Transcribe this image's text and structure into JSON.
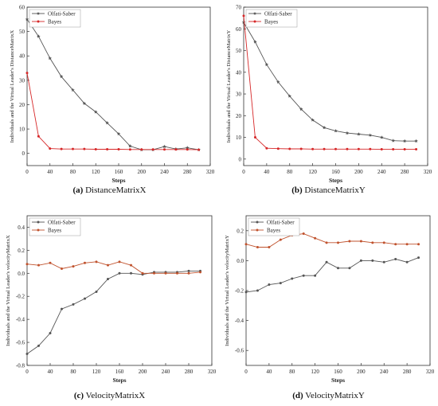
{
  "captions": [
    {
      "letter": "(a)",
      "text": "DistanceMatrixX"
    },
    {
      "letter": "(b)",
      "text": "DistanceMatrixY"
    },
    {
      "letter": "(c)",
      "text": "VelocityMatrixX"
    },
    {
      "letter": "(d)",
      "text": "VelocityMatrixY"
    }
  ],
  "chart_data": [
    {
      "type": "line",
      "xlabel": "Steps",
      "ylabel": "Individuals and the Virtual Leader's DistanceMatrixX",
      "xlim": [
        0,
        320
      ],
      "ylim": [
        -5,
        60
      ],
      "xticks": [
        0,
        40,
        80,
        120,
        160,
        200,
        240,
        280,
        320
      ],
      "yticks": [
        0,
        10,
        20,
        30,
        40,
        50,
        60
      ],
      "legend": "top-left",
      "x": [
        0,
        20,
        40,
        60,
        80,
        100,
        120,
        140,
        160,
        180,
        200,
        220,
        240,
        260,
        280,
        300
      ],
      "series": [
        {
          "name": "Olfati-Saber",
          "color": "#555555",
          "marker": "star",
          "values": [
            55,
            48,
            39,
            31.5,
            26,
            20.5,
            17,
            12.5,
            8,
            3,
            1.5,
            1.5,
            2.8,
            1.8,
            2.3,
            1.5
          ]
        },
        {
          "name": "Bayes",
          "color": "#d62728",
          "marker": "dot",
          "values": [
            33,
            7,
            2,
            1.8,
            1.8,
            1.8,
            1.7,
            1.7,
            1.7,
            1.6,
            1.6,
            1.6,
            1.6,
            1.6,
            1.6,
            1.5
          ]
        }
      ]
    },
    {
      "type": "line",
      "xlabel": "Steps",
      "ylabel": "Individuals and the Virtual Leader's DistanceMatrixY",
      "xlim": [
        0,
        320
      ],
      "ylim": [
        -3,
        70
      ],
      "xticks": [
        0,
        40,
        80,
        120,
        160,
        200,
        240,
        280,
        320
      ],
      "yticks": [
        0,
        10,
        20,
        30,
        40,
        50,
        60,
        70
      ],
      "legend": "top-left",
      "x": [
        0,
        20,
        40,
        60,
        80,
        100,
        120,
        140,
        160,
        180,
        200,
        220,
        240,
        260,
        280,
        300
      ],
      "series": [
        {
          "name": "Olfati-Saber",
          "color": "#555555",
          "marker": "star",
          "values": [
            63,
            54,
            43.5,
            35.5,
            29,
            23,
            18,
            14.5,
            13,
            12,
            11.5,
            11,
            10,
            8.5,
            8.3,
            8.3
          ]
        },
        {
          "name": "Bayes",
          "color": "#d62728",
          "marker": "dot",
          "values": [
            66,
            10,
            5,
            4.8,
            4.7,
            4.7,
            4.6,
            4.6,
            4.6,
            4.6,
            4.6,
            4.6,
            4.5,
            4.5,
            4.5,
            4.5
          ]
        }
      ]
    },
    {
      "type": "line",
      "xlabel": "Steps",
      "ylabel": "Individuals and the Virtual Leader's velocityMatrixX",
      "xlim": [
        0,
        320
      ],
      "ylim": [
        -0.8,
        0.5
      ],
      "xticks": [
        0,
        40,
        80,
        120,
        160,
        200,
        240,
        280,
        320
      ],
      "yticks": [
        -0.8,
        -0.6,
        -0.4,
        -0.2,
        0.0,
        0.2,
        0.4
      ],
      "legend": "top-left",
      "x": [
        0,
        20,
        40,
        60,
        80,
        100,
        120,
        140,
        160,
        180,
        200,
        220,
        240,
        260,
        280,
        300
      ],
      "series": [
        {
          "name": "Olfati-Saber",
          "color": "#555555",
          "marker": "dot",
          "values": [
            -0.7,
            -0.63,
            -0.52,
            -0.31,
            -0.27,
            -0.22,
            -0.16,
            -0.05,
            0.0,
            0.0,
            -0.01,
            0.01,
            0.01,
            0.01,
            0.02,
            0.02
          ]
        },
        {
          "name": "Bayes",
          "color": "#c0522d",
          "marker": "dot",
          "values": [
            0.08,
            0.07,
            0.09,
            0.04,
            0.06,
            0.09,
            0.1,
            0.07,
            0.1,
            0.07,
            0.0,
            0.0,
            0.0,
            0.0,
            0.0,
            0.01
          ]
        }
      ]
    },
    {
      "type": "line",
      "xlabel": "Steps",
      "ylabel": "Individuals and the Virtual Leader's velocityMatrixY",
      "xlim": [
        0,
        320
      ],
      "ylim": [
        -0.7,
        0.3
      ],
      "xticks": [
        0,
        40,
        80,
        120,
        160,
        200,
        240,
        280,
        320
      ],
      "yticks": [
        -0.6,
        -0.4,
        -0.2,
        0.0,
        0.2
      ],
      "legend": "top-left",
      "x": [
        0,
        20,
        40,
        60,
        80,
        100,
        120,
        140,
        160,
        180,
        200,
        220,
        240,
        260,
        280,
        300
      ],
      "series": [
        {
          "name": "Olfati-Saber",
          "color": "#555555",
          "marker": "dot",
          "values": [
            -0.21,
            -0.2,
            -0.16,
            -0.15,
            -0.12,
            -0.1,
            -0.1,
            -0.01,
            -0.05,
            -0.05,
            0.0,
            0.0,
            -0.01,
            0.01,
            -0.01,
            0.02
          ]
        },
        {
          "name": "Bayes",
          "color": "#c0522d",
          "marker": "dot",
          "values": [
            0.11,
            0.09,
            0.09,
            0.14,
            0.17,
            0.18,
            0.15,
            0.12,
            0.12,
            0.13,
            0.13,
            0.12,
            0.12,
            0.11,
            0.11,
            0.11
          ]
        }
      ]
    }
  ]
}
